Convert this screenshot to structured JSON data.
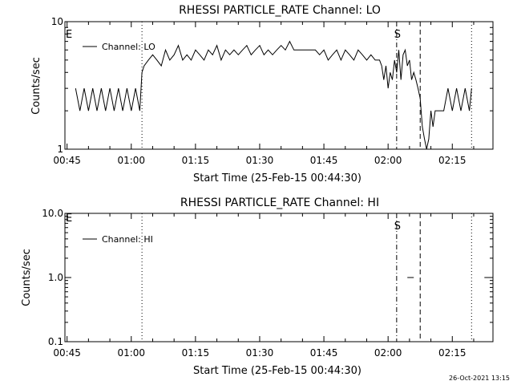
{
  "chart_data": [
    {
      "type": "line",
      "title": "RHESSI PARTICLE_RATE Channel: LO",
      "xlabel": "Start Time (25-Feb-15 00:44:30)",
      "ylabel": "Counts/sec",
      "y_scale": "log",
      "ylim": [
        1,
        10
      ],
      "y_ticks": [
        "1",
        "10"
      ],
      "x_ticks": [
        "00:45",
        "01:00",
        "01:15",
        "01:30",
        "01:45",
        "02:00",
        "02:15"
      ],
      "xlim_minutes": [
        44.5,
        144.5
      ],
      "legend": "top-left",
      "legend_label": "Channel: LO",
      "markers": [
        {
          "minute": 62.5,
          "style": "dotted",
          "text": ""
        },
        {
          "minute": 122.0,
          "style": "dashdot",
          "text": "S"
        },
        {
          "minute": 127.5,
          "style": "dashed",
          "text": ""
        },
        {
          "minute": 139.5,
          "style": "dotted",
          "text": ""
        }
      ],
      "corner_label": "E",
      "series": [
        {
          "name": "Channel: LO",
          "x": [
            47,
            48,
            49,
            50,
            51,
            52,
            53,
            54,
            55,
            56,
            57,
            58,
            59,
            60,
            61,
            62,
            62.5,
            63,
            64,
            65,
            66,
            67,
            68,
            69,
            70,
            71,
            72,
            73,
            74,
            75,
            76,
            77,
            78,
            79,
            80,
            81,
            82,
            83,
            84,
            85,
            86,
            87,
            88,
            89,
            90,
            91,
            92,
            93,
            94,
            95,
            96,
            97,
            98,
            99,
            100,
            101,
            102,
            103,
            104,
            105,
            106,
            107,
            108,
            109,
            110,
            111,
            112,
            113,
            114,
            115,
            116,
            117,
            118,
            118.5,
            119,
            119.5,
            120,
            120.5,
            121,
            121.5,
            122,
            122.5,
            123,
            123.5,
            124,
            124.5,
            125,
            125.5,
            126,
            126.5,
            127,
            127.5,
            128,
            128.5,
            129,
            129.5,
            130,
            130.5,
            131,
            132,
            133,
            134,
            135,
            136,
            137,
            138,
            139,
            139.5
          ],
          "y": [
            3,
            2,
            3,
            2,
            3,
            2,
            3,
            2,
            3,
            2,
            3,
            2,
            3,
            2,
            3,
            2,
            4,
            4.5,
            5,
            5.5,
            5,
            4.5,
            6,
            5,
            5.5,
            6.5,
            5,
            5.5,
            5,
            6,
            5.5,
            5,
            6,
            5.5,
            6.5,
            5,
            6,
            5.5,
            6,
            5.5,
            6,
            6.5,
            5.5,
            6,
            6.5,
            5.5,
            6,
            5.5,
            6,
            6.5,
            6,
            7,
            6,
            6,
            6,
            6,
            6,
            6,
            5.5,
            6,
            5,
            5.5,
            6,
            5,
            6,
            5.5,
            5,
            6,
            5.5,
            5,
            5.5,
            5,
            5,
            4.5,
            3.5,
            4.5,
            3,
            4,
            3.5,
            5,
            4,
            6,
            3.5,
            5.5,
            6,
            4.5,
            5,
            3.5,
            4,
            3.5,
            3,
            2.5,
            1.5,
            1.2,
            1,
            1.2,
            2,
            1.5,
            2,
            2,
            2,
            3,
            2,
            3,
            2,
            3,
            2,
            3
          ]
        }
      ]
    },
    {
      "type": "line",
      "title": "RHESSI PARTICLE_RATE Channel: HI",
      "xlabel": "Start Time (25-Feb-15 00:44:30)",
      "ylabel": "Counts/sec",
      "y_scale": "log",
      "ylim": [
        0.1,
        10
      ],
      "y_ticks": [
        "0.1",
        "1.0",
        "10.0"
      ],
      "x_ticks": [
        "00:45",
        "01:00",
        "01:15",
        "01:30",
        "01:45",
        "02:00",
        "02:15"
      ],
      "xlim_minutes": [
        44.5,
        144.5
      ],
      "legend": "top-left",
      "legend_label": "Channel: HI",
      "markers": [
        {
          "minute": 62.5,
          "style": "dotted",
          "text": ""
        },
        {
          "minute": 122.0,
          "style": "dashdot",
          "text": "S"
        },
        {
          "minute": 127.5,
          "style": "dashed",
          "text": ""
        },
        {
          "minute": 139.5,
          "style": "dotted",
          "text": ""
        }
      ],
      "corner_label": "E",
      "series": [
        {
          "name": "Channel: HI",
          "segments": [
            {
              "x": [
                124.5,
                126.0
              ],
              "y": [
                1,
                1
              ]
            },
            {
              "x": [
                142.5,
                144.5
              ],
              "y": [
                1,
                1
              ]
            }
          ]
        }
      ]
    }
  ],
  "footer": {
    "timestamp": "26-Oct-2021 13:15"
  }
}
